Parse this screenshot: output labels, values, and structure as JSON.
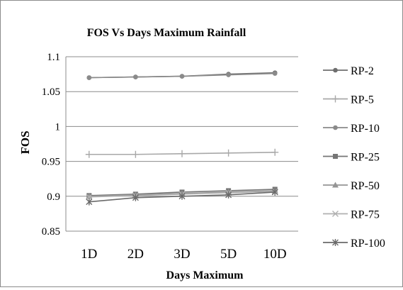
{
  "chart_data": {
    "type": "line",
    "title": "FOS Vs Days Maximum Rainfall",
    "xlabel": "Days Maximum",
    "ylabel": "FOS",
    "categories": [
      "1D",
      "2D",
      "3D",
      "5D",
      "10D"
    ],
    "ylim": [
      0.85,
      1.1
    ],
    "yticks": [
      0.85,
      0.9,
      0.95,
      1,
      1.05,
      1.1
    ],
    "ytick_labels": [
      "0.85",
      "0.9",
      "0.95",
      "1",
      "1.05",
      "1.1"
    ],
    "grid": true,
    "legend_position": "right",
    "series": [
      {
        "name": "RP-2",
        "marker": "circle",
        "color": "#6e6e6e",
        "values": [
          1.07,
          1.071,
          1.072,
          1.075,
          1.077
        ]
      },
      {
        "name": "RP-5",
        "marker": "plus",
        "color": "#a8a8a8",
        "values": [
          0.96,
          0.96,
          0.961,
          0.962,
          0.963
        ]
      },
      {
        "name": "RP-10",
        "marker": "circle",
        "color": "#8a8a8a",
        "values": [
          1.07,
          1.071,
          1.072,
          1.074,
          1.076
        ]
      },
      {
        "name": "RP-25",
        "marker": "square",
        "color": "#757575",
        "values": [
          0.901,
          0.903,
          0.906,
          0.908,
          0.91
        ]
      },
      {
        "name": "RP-50",
        "marker": "triangle",
        "color": "#959595",
        "values": [
          0.9,
          0.902,
          0.904,
          0.906,
          0.908
        ]
      },
      {
        "name": "RP-75",
        "marker": "x",
        "color": "#b0b0b0",
        "values": [
          0.899,
          0.901,
          0.903,
          0.905,
          0.907
        ]
      },
      {
        "name": "RP-100",
        "marker": "star",
        "color": "#6a6a6a",
        "values": [
          0.892,
          0.898,
          0.9,
          0.902,
          0.906
        ]
      }
    ]
  }
}
